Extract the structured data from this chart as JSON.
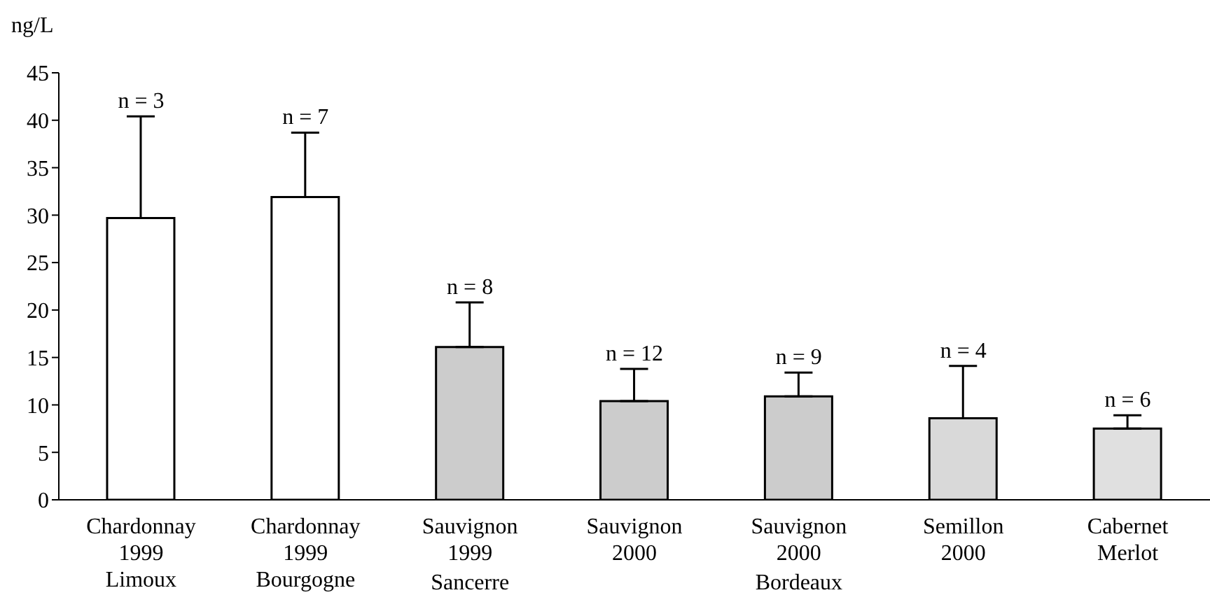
{
  "chart_data": {
    "type": "bar",
    "ylabel": "ng/L",
    "categories": [
      "Chardonnay\n1999\nLimoux",
      "Chardonnay\n1999\nBourgogne",
      "Sauvignon\n1999",
      "Sauvignon\n2000",
      "Sauvignon\n2000",
      "Semillon\n2000",
      "Cabernet\nMerlot"
    ],
    "values": [
      29.7,
      31.9,
      16.1,
      10.4,
      10.9,
      8.6,
      7.5
    ],
    "errors": [
      [
        29.7,
        40.4
      ],
      [
        31.9,
        38.7
      ],
      [
        16.1,
        20.8
      ],
      [
        10.4,
        13.8
      ],
      [
        10.9,
        13.4
      ],
      [
        8.6,
        14.1
      ],
      [
        7.5,
        8.9
      ]
    ],
    "colors": [
      "#ffffff",
      "#ffffff",
      "#cccccc",
      "#cccccc",
      "#cccccc",
      "#d9d9d9",
      "#e0e0e0"
    ],
    "ylim": [
      0,
      45
    ],
    "yticks": [
      0,
      5,
      10,
      15,
      20,
      25,
      30,
      35,
      40,
      45
    ],
    "grid": false,
    "annotations": [
      "n = 3",
      "n = 7",
      "n = 8",
      "n = 12",
      "n = 9",
      "n = 4",
      "n = 6",
      "Sancerre",
      "Bordeaux"
    ]
  }
}
